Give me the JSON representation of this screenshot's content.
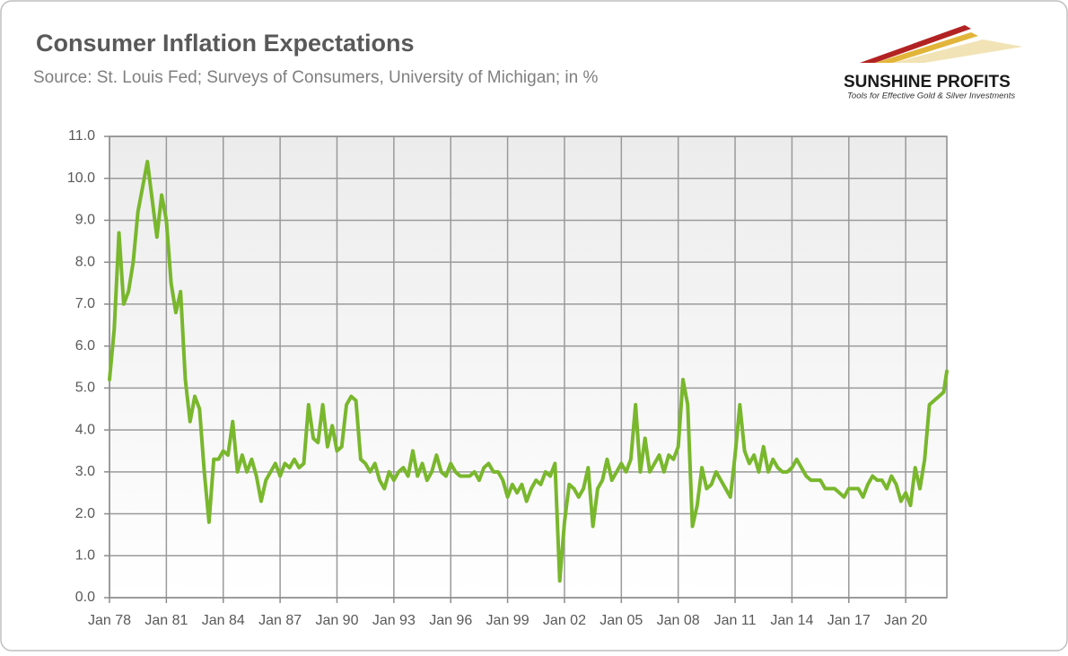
{
  "chart_data": {
    "type": "line",
    "title": "Consumer Inflation Expectations",
    "subtitle": "Source: St. Louis Fed; Surveys of Consumers, University of Michigan; in %",
    "logo": {
      "name": "SUNSHINE PROFITS",
      "tagline": "Tools for Effective Gold & Silver Investments"
    },
    "color": "#79b72d",
    "grid": true,
    "xlim": [
      1978,
      2022.17
    ],
    "xticks": [
      {
        "value": 1978,
        "label": "Jan 78"
      },
      {
        "value": 1981,
        "label": "Jan 81"
      },
      {
        "value": 1984,
        "label": "Jan 84"
      },
      {
        "value": 1987,
        "label": "Jan 87"
      },
      {
        "value": 1990,
        "label": "Jan 90"
      },
      {
        "value": 1993,
        "label": "Jan 93"
      },
      {
        "value": 1996,
        "label": "Jan 96"
      },
      {
        "value": 1999,
        "label": "Jan 99"
      },
      {
        "value": 2002,
        "label": "Jan 02"
      },
      {
        "value": 2005,
        "label": "Jan 05"
      },
      {
        "value": 2008,
        "label": "Jan 08"
      },
      {
        "value": 2011,
        "label": "Jan 11"
      },
      {
        "value": 2014,
        "label": "Jan 14"
      },
      {
        "value": 2017,
        "label": "Jan 17"
      },
      {
        "value": 2020,
        "label": "Jan 20"
      }
    ],
    "ylim": [
      0,
      11
    ],
    "yticks": [
      {
        "value": 0,
        "label": "0.0"
      },
      {
        "value": 1,
        "label": "1.0"
      },
      {
        "value": 2,
        "label": "2.0"
      },
      {
        "value": 3,
        "label": "3.0"
      },
      {
        "value": 4,
        "label": "4.0"
      },
      {
        "value": 5,
        "label": "5.0"
      },
      {
        "value": 6,
        "label": "6.0"
      },
      {
        "value": 7,
        "label": "7.0"
      },
      {
        "value": 8,
        "label": "8.0"
      },
      {
        "value": 9,
        "label": "9.0"
      },
      {
        "value": 10,
        "label": "10.0"
      },
      {
        "value": 11,
        "label": "11.0"
      }
    ],
    "x": [
      1978,
      1978.25,
      1978.5,
      1978.75,
      1979,
      1979.25,
      1979.5,
      1979.75,
      1980,
      1980.25,
      1980.5,
      1980.75,
      1981,
      1981.25,
      1981.5,
      1981.75,
      1982,
      1982.25,
      1982.5,
      1982.75,
      1983,
      1983.25,
      1983.5,
      1983.75,
      1984,
      1984.25,
      1984.5,
      1984.75,
      1985,
      1985.25,
      1985.5,
      1985.75,
      1986,
      1986.25,
      1986.5,
      1986.75,
      1987,
      1987.25,
      1987.5,
      1987.75,
      1988,
      1988.25,
      1988.5,
      1988.75,
      1989,
      1989.25,
      1989.5,
      1989.75,
      1990,
      1990.25,
      1990.5,
      1990.75,
      1991,
      1991.25,
      1991.5,
      1991.75,
      1992,
      1992.25,
      1992.5,
      1992.75,
      1993,
      1993.25,
      1993.5,
      1993.75,
      1994,
      1994.25,
      1994.5,
      1994.75,
      1995,
      1995.25,
      1995.5,
      1995.75,
      1996,
      1996.25,
      1996.5,
      1996.75,
      1997,
      1997.25,
      1997.5,
      1997.75,
      1998,
      1998.25,
      1998.5,
      1998.75,
      1999,
      1999.25,
      1999.5,
      1999.75,
      2000,
      2000.25,
      2000.5,
      2000.75,
      2001,
      2001.25,
      2001.5,
      2001.75,
      2002,
      2002.25,
      2002.5,
      2002.75,
      2003,
      2003.25,
      2003.5,
      2003.75,
      2004,
      2004.25,
      2004.5,
      2004.75,
      2005,
      2005.25,
      2005.5,
      2005.75,
      2006,
      2006.25,
      2006.5,
      2006.75,
      2007,
      2007.25,
      2007.5,
      2007.75,
      2008,
      2008.25,
      2008.5,
      2008.75,
      2009,
      2009.25,
      2009.5,
      2009.75,
      2010,
      2010.25,
      2010.5,
      2010.75,
      2011,
      2011.25,
      2011.5,
      2011.75,
      2012,
      2012.25,
      2012.5,
      2012.75,
      2013,
      2013.25,
      2013.5,
      2013.75,
      2014,
      2014.25,
      2014.5,
      2014.75,
      2015,
      2015.25,
      2015.5,
      2015.75,
      2016,
      2016.25,
      2016.5,
      2016.75,
      2017,
      2017.25,
      2017.5,
      2017.75,
      2018,
      2018.25,
      2018.5,
      2018.75,
      2019,
      2019.25,
      2019.5,
      2019.75,
      2020,
      2020.25,
      2020.5,
      2020.75,
      2021,
      2021.25,
      2021.5,
      2021.75,
      2022,
      2022.17
    ],
    "values": [
      5.2,
      6.4,
      8.7,
      7.0,
      7.3,
      8.0,
      9.2,
      9.8,
      10.4,
      9.5,
      8.6,
      9.6,
      9.0,
      7.5,
      6.8,
      7.3,
      5.2,
      4.2,
      4.8,
      4.5,
      3.0,
      1.8,
      3.3,
      3.3,
      3.5,
      3.4,
      4.2,
      3.0,
      3.4,
      3.0,
      3.3,
      2.9,
      2.3,
      2.8,
      3.0,
      3.2,
      2.9,
      3.2,
      3.1,
      3.3,
      3.1,
      3.2,
      4.6,
      3.8,
      3.7,
      4.6,
      3.6,
      4.1,
      3.5,
      3.6,
      4.6,
      4.8,
      4.7,
      3.3,
      3.2,
      3.0,
      3.2,
      2.8,
      2.6,
      3.0,
      2.8,
      3.0,
      3.1,
      2.9,
      3.5,
      2.9,
      3.2,
      2.8,
      3.0,
      3.4,
      3.0,
      2.9,
      3.2,
      3.0,
      2.9,
      2.9,
      2.9,
      3.0,
      2.8,
      3.1,
      3.2,
      3.0,
      3.0,
      2.8,
      2.4,
      2.7,
      2.5,
      2.7,
      2.3,
      2.6,
      2.8,
      2.7,
      3.0,
      2.9,
      3.2,
      0.4,
      1.8,
      2.7,
      2.6,
      2.4,
      2.6,
      3.1,
      1.7,
      2.6,
      2.8,
      3.3,
      2.8,
      3.0,
      3.2,
      3.0,
      3.3,
      4.6,
      3.0,
      3.8,
      3.0,
      3.2,
      3.4,
      3.0,
      3.4,
      3.3,
      3.6,
      5.2,
      4.6,
      1.7,
      2.2,
      3.1,
      2.6,
      2.7,
      3.0,
      2.8,
      2.6,
      2.4,
      3.4,
      4.6,
      3.5,
      3.2,
      3.4,
      3.0,
      3.6,
      3.0,
      3.3,
      3.1,
      3.0,
      3.0,
      3.1,
      3.3,
      3.1,
      2.9,
      2.8,
      2.8,
      2.8,
      2.6,
      2.6,
      2.6,
      2.5,
      2.4,
      2.6,
      2.6,
      2.6,
      2.4,
      2.7,
      2.9,
      2.8,
      2.8,
      2.6,
      2.9,
      2.7,
      2.3,
      2.5,
      2.2,
      3.1,
      2.6,
      3.3,
      4.6,
      4.7,
      4.8,
      4.9,
      5.4
    ]
  }
}
